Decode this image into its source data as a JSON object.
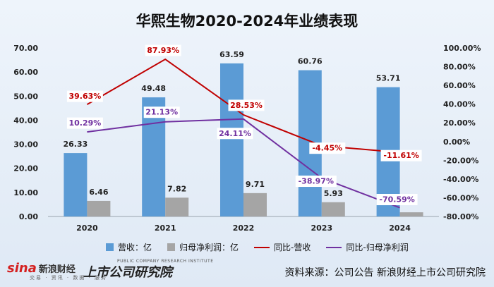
{
  "title": "华熙生物2020-2024年业绩表现",
  "chart_data": {
    "type": "bar",
    "categories": [
      "2020",
      "2021",
      "2022",
      "2023",
      "2024"
    ],
    "series": [
      {
        "name": "营收：亿",
        "kind": "bar",
        "axis": "left",
        "color": "#5b9bd5",
        "values": [
          26.33,
          49.48,
          63.59,
          60.76,
          53.71
        ],
        "labels": [
          "26.33",
          "49.48",
          "63.59",
          "60.76",
          "53.71"
        ]
      },
      {
        "name": "归母净利润：亿",
        "kind": "bar",
        "axis": "left",
        "color": "#a5a5a5",
        "values": [
          6.46,
          7.82,
          9.71,
          5.93,
          1.74
        ],
        "labels": [
          "6.46",
          "7.82",
          "9.71",
          "5.93",
          ""
        ]
      },
      {
        "name": "同比-营收",
        "kind": "line",
        "axis": "right",
        "color": "#c00000",
        "values": [
          39.63,
          87.93,
          28.53,
          -4.45,
          -11.61
        ],
        "labels": [
          "39.63%",
          "87.93%",
          "28.53%",
          "-4.45%",
          "-11.61%"
        ]
      },
      {
        "name": "同比-归母净利润",
        "kind": "line",
        "axis": "right",
        "color": "#7030a0",
        "values": [
          10.29,
          21.13,
          24.11,
          -38.97,
          -70.59
        ],
        "labels": [
          "10.29%",
          "21.13%",
          "24.11%",
          "-38.97%",
          "-70.59%"
        ]
      }
    ],
    "left_axis": {
      "ticks": [
        "0.00",
        "10.00",
        "20.00",
        "30.00",
        "40.00",
        "50.00",
        "60.00",
        "70.00"
      ],
      "range": [
        0,
        70
      ]
    },
    "right_axis": {
      "ticks": [
        "-80.00%",
        "-60.00%",
        "-40.00%",
        "-20.00%",
        "0.00%",
        "20.00%",
        "40.00%",
        "60.00%",
        "80.00%",
        "100.00%"
      ],
      "range": [
        -80,
        100
      ]
    },
    "grid": false,
    "legend_position": "bottom"
  },
  "legend": [
    {
      "label": "营收：亿",
      "kind": "bar",
      "color": "#5b9bd5"
    },
    {
      "label": "归母净利润：亿",
      "kind": "bar",
      "color": "#a5a5a5"
    },
    {
      "label": "同比-营收",
      "kind": "line",
      "color": "#c00000"
    },
    {
      "label": "同比-归母净利润",
      "kind": "line",
      "color": "#7030a0"
    }
  ],
  "footer": {
    "logo_sina": "sina",
    "logo_sina_cn": "新浪财经",
    "logo_sina_tag": "交易 · 资讯 · 数据 · 服务",
    "logo_institute": "上市公司研究院",
    "logo_institute_en": "PUBLIC COMPANY RESEARCH INSTITUTE",
    "source": "资料来源：公司公告 新浪财经上市公司研究院"
  }
}
